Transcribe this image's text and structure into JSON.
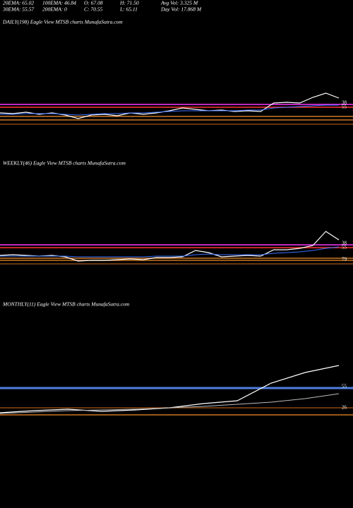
{
  "header": {
    "rows": [
      [
        "20EMA: 65.02",
        "100EMA: 46.84",
        "O: 67.08",
        "H: 71.50",
        "Avg Vol: 3.325 M"
      ],
      [
        "30EMA: 55.57",
        "200EMA: 0",
        "C: 70.55",
        "L: 65.11",
        "Day Vol: 17.868 M"
      ]
    ]
  },
  "chart_data": [
    {
      "type": "line",
      "title": "DAILY(198) Eagle  View  MTSB charts MunafaSutra.com",
      "ylim": [
        0,
        100
      ],
      "series": [
        {
          "color": "#ffffff",
          "values": [
            20,
            19.5,
            20.5,
            19,
            20,
            18.5,
            16,
            18.5,
            19,
            18,
            20,
            19,
            20,
            21.5,
            23.5,
            22.5,
            21.5,
            22,
            21,
            21.5,
            21,
            27,
            27.5,
            27,
            31,
            34,
            30.5
          ]
        },
        {
          "color": "#3b6fff",
          "values": [
            19,
            19,
            19.5,
            19.5,
            19.5,
            19,
            18.5,
            19,
            19.5,
            19.5,
            20,
            20,
            20.5,
            21,
            21.5,
            21.5,
            21.5,
            21.5,
            21.5,
            22,
            22,
            23.5,
            24,
            24.5,
            25,
            25.5,
            25.5
          ]
        }
      ],
      "levels": [
        {
          "value": 26,
          "color": "#ff33ff"
        },
        {
          "value": 24,
          "color": "#ff3333"
        },
        {
          "value": 17.5,
          "color": "#cc7722"
        },
        {
          "value": 15,
          "color": "#cc7722"
        },
        {
          "value": 12,
          "color": "#8b4513"
        }
      ],
      "annotations": [
        "38",
        "55"
      ]
    },
    {
      "type": "line",
      "title": "WEEKLY(46) Eagle  View  MTSB charts MunafaSutra.com",
      "ylim": [
        0,
        100
      ],
      "series": [
        {
          "color": "#ffffff",
          "values": [
            19,
            19.5,
            19,
            18.5,
            19,
            18,
            15,
            15.5,
            15.5,
            16,
            16.5,
            16,
            17.5,
            17.5,
            18,
            22.5,
            21,
            18,
            18.5,
            19,
            18.5,
            23,
            23,
            24,
            26,
            36,
            30
          ]
        },
        {
          "color": "#3b6fff",
          "values": [
            18.5,
            18.5,
            18.5,
            18.5,
            18.5,
            18.5,
            18,
            18,
            18,
            18,
            18,
            18,
            18.5,
            18.5,
            18.5,
            19.5,
            20,
            19.5,
            19.5,
            19.5,
            19.5,
            20.5,
            21,
            21.5,
            22.5,
            24,
            25
          ]
        }
      ],
      "levels": [
        {
          "value": 26.5,
          "color": "#ff33ff"
        },
        {
          "value": 24.5,
          "color": "#ff3333"
        },
        {
          "value": 17,
          "color": "#cc7722"
        },
        {
          "value": 15.5,
          "color": "#cc7722"
        },
        {
          "value": 13,
          "color": "#8b4513"
        }
      ],
      "annotations": [
        "38",
        "55",
        "79"
      ]
    },
    {
      "type": "line",
      "title": "MONTHLY(11) Eagle  View  MTSB charts MunafaSutra.com",
      "ylim": [
        0,
        100
      ],
      "series": [
        {
          "color": "#ffffff",
          "values": [
            7.5,
            9,
            10,
            8.5,
            9.5,
            11,
            14,
            16,
            28.5,
            36,
            41
          ]
        },
        {
          "color": "#bbbbbb",
          "values": [
            7,
            8,
            9,
            9.5,
            10,
            11,
            12,
            13.5,
            15,
            17.5,
            21
          ]
        }
      ],
      "levels": [
        {
          "value": 25,
          "color": "#4f7fe0"
        },
        {
          "value": 11,
          "color": "#8b4513"
        },
        {
          "value": 6,
          "color": "#cc7722"
        }
      ],
      "annotations": [
        "55",
        "26"
      ]
    }
  ]
}
